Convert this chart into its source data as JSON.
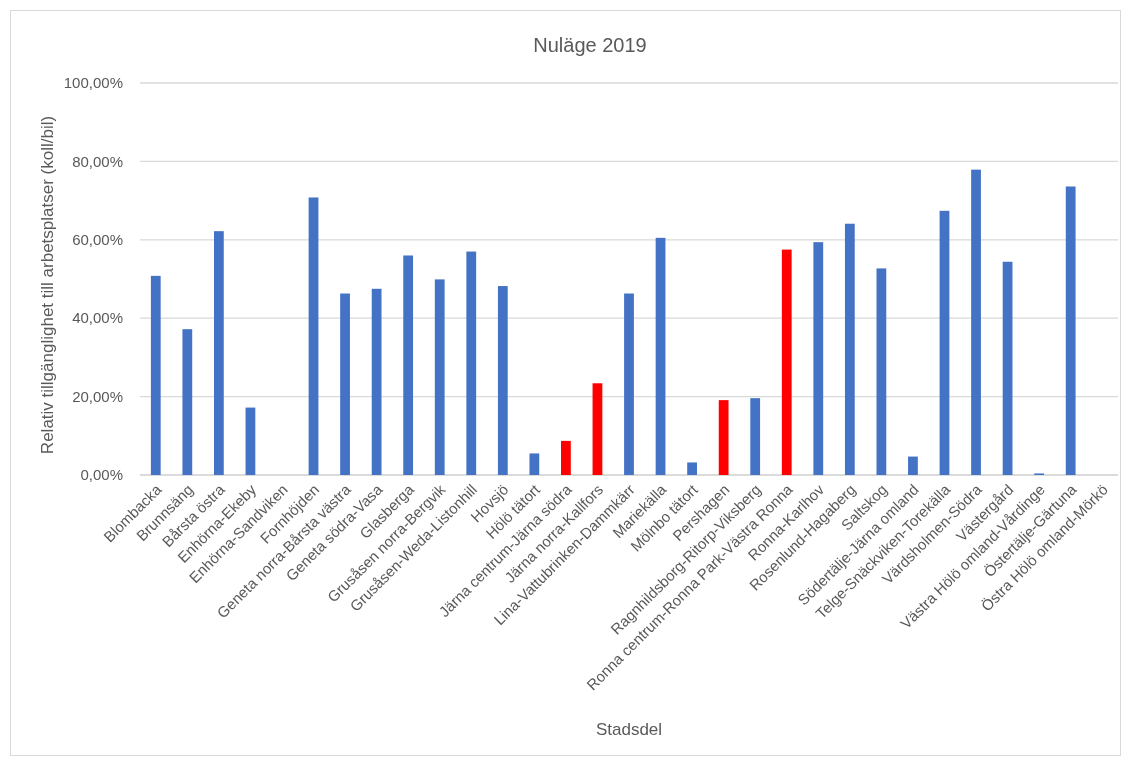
{
  "chart_data": {
    "type": "bar",
    "title": "Nuläge 2019",
    "xlabel": "Stadsdel",
    "ylabel": "Relativ tillgänglighet till arbetsplatser (koll/bil)",
    "categories": [
      "Blombacka",
      "Brunnsäng",
      "Bårsta östra",
      "Enhörna-Ekeby",
      "Enhörna-Sandviken",
      "Fornhöjden",
      "Geneta norra-Bårsta västra",
      "Geneta södra-Vasa",
      "Glasberga",
      "Grusåsen norra-Bergvik",
      "Grusåsen-Weda-Listonhill",
      "Hovsjö",
      "Hölö tätort",
      "Järna centrum-Järna södra",
      "Järna norra-Kallfors",
      "Lina-Vattubrinken-Dammkärr",
      "Mariekälla",
      "Mölnbo tätort",
      "Pershagen",
      "Ragnhildsborg-Ritorp-Viksberg",
      "Ronna centrum-Ronna Park-Västra Ronna",
      "Ronna-Karlhov",
      "Rosenlund-Hagaberg",
      "Saltskog",
      "Södertälje-Järna omland",
      "Telge-Snäckviken-Torekälla",
      "Värdsholmen-Södra",
      "Västergård",
      "Västra Hölö omland-Vårdinge",
      "Östertälje-Gärtuna",
      "Östra Hölö omland-Mörkö"
    ],
    "values": [
      50.8,
      37.2,
      62.2,
      17.2,
      null,
      70.8,
      46.3,
      47.5,
      56.0,
      49.9,
      57.0,
      48.2,
      5.5,
      8.7,
      23.4,
      46.3,
      60.5,
      3.2,
      19.1,
      19.6,
      57.5,
      59.4,
      64.1,
      52.7,
      4.7,
      67.4,
      77.9,
      54.4,
      0.4,
      73.6,
      null
    ],
    "colors": [
      "#4472c4",
      "#4472c4",
      "#4472c4",
      "#4472c4",
      null,
      "#4472c4",
      "#4472c4",
      "#4472c4",
      "#4472c4",
      "#4472c4",
      "#4472c4",
      "#4472c4",
      "#4472c4",
      "#ff0000",
      "#ff0000",
      "#4472c4",
      "#4472c4",
      "#4472c4",
      "#ff0000",
      "#4472c4",
      "#ff0000",
      "#4472c4",
      "#4472c4",
      "#4472c4",
      "#4472c4",
      "#4472c4",
      "#4472c4",
      "#4472c4",
      "#4472c4",
      "#4472c4",
      null
    ],
    "ylim": [
      0,
      100
    ],
    "yticks": [
      {
        "value": 0,
        "label": "0,00%"
      },
      {
        "value": 20,
        "label": "20,00%"
      },
      {
        "value": 40,
        "label": "40,00%"
      },
      {
        "value": 60,
        "label": "60,00%"
      },
      {
        "value": 80,
        "label": "80,00%"
      },
      {
        "value": 100,
        "label": "100,00%"
      }
    ],
    "grid": "y"
  }
}
